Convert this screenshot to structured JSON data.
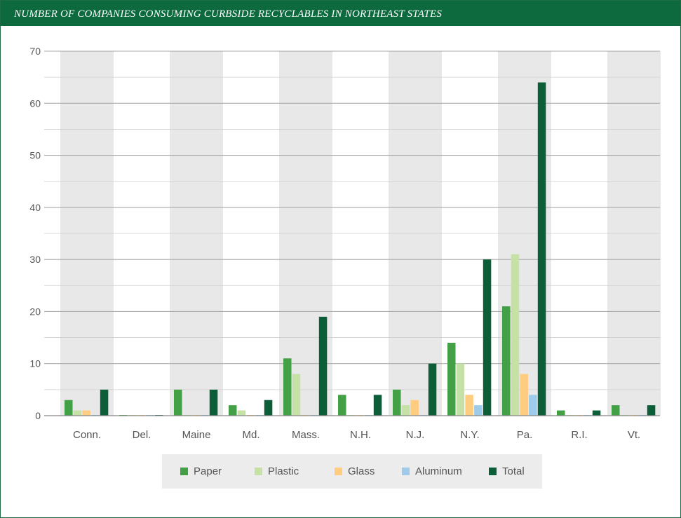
{
  "header": {
    "title": "NUMBER OF COMPANIES CONSUMING CURBSIDE RECYCLABLES IN NORTHEAST STATES"
  },
  "colors": {
    "Paper": "#43a047",
    "Plastic": "#c5e1a5",
    "Glass": "#ffcc80",
    "Aluminum": "#9fcbea",
    "Total": "#0b5e37",
    "band": "#e8e8e8",
    "grid": "#a9a9a9"
  },
  "chart_data": {
    "type": "bar",
    "title": "NUMBER OF COMPANIES CONSUMING CURBSIDE RECYCLABLES IN NORTHEAST STATES",
    "categories": [
      "Conn.",
      "Del.",
      "Maine",
      "Md.",
      "Mass.",
      "N.H.",
      "N.J.",
      "N.Y.",
      "Pa.",
      "R.I.",
      "Vt."
    ],
    "series": [
      {
        "name": "Paper",
        "values": [
          3,
          0,
          5,
          2,
          11,
          4,
          5,
          14,
          21,
          1,
          2
        ]
      },
      {
        "name": "Plastic",
        "values": [
          1,
          0,
          0,
          1,
          8,
          0,
          2,
          10,
          31,
          0,
          0
        ]
      },
      {
        "name": "Glass",
        "values": [
          1,
          0,
          0,
          0,
          0,
          0,
          3,
          4,
          8,
          0,
          0
        ]
      },
      {
        "name": "Aluminum",
        "values": [
          0,
          0,
          0,
          0,
          0,
          0,
          0,
          2,
          4,
          0,
          0
        ]
      },
      {
        "name": "Total",
        "values": [
          5,
          0,
          5,
          3,
          19,
          4,
          10,
          30,
          64,
          1,
          2
        ]
      }
    ],
    "ylim": [
      0,
      70
    ],
    "yticks": [
      0,
      10,
      20,
      30,
      40,
      50,
      60,
      70
    ],
    "xlabel": "",
    "ylabel": "",
    "grid": true,
    "legend_position": "bottom"
  }
}
